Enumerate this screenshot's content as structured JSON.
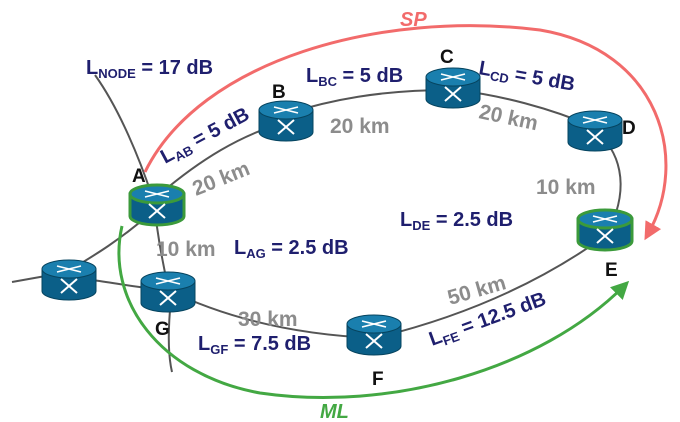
{
  "colors": {
    "loss_text": "#1f1f6e",
    "distance_text": "#8c8c8c",
    "sp_path": "#f26b6b",
    "ml_path": "#43a843",
    "router_body": "#0b5f88",
    "router_top": "#1a7fae",
    "router_rim": "#3b9a3b",
    "link": "#555555"
  },
  "icons": {
    "router": "router-cylinder-icon"
  },
  "nodes": {
    "A": "A",
    "B": "B",
    "C": "C",
    "D": "D",
    "E": "E",
    "F": "F",
    "G": "G"
  },
  "node_loss": {
    "main": "L",
    "sub": "NODE",
    "value": " = 17 dB"
  },
  "links": {
    "AB": {
      "sub": "AB",
      "value": " = 5 dB",
      "distance": "20 km"
    },
    "BC": {
      "sub": "BC",
      "value": " = 5 dB",
      "distance": "20 km"
    },
    "CD": {
      "sub": "CD",
      "value": " = 5 dB",
      "distance": "20 km"
    },
    "DE": {
      "sub": "DE",
      "value": " = 2.5 dB",
      "distance": "10 km"
    },
    "AG": {
      "sub": "AG",
      "value": " = 2.5 dB",
      "distance": "10 km"
    },
    "GF": {
      "sub": "GF",
      "value": " = 7.5 dB",
      "distance": "30 km"
    },
    "FE": {
      "sub": "FE",
      "value": " = 12.5 dB",
      "distance": "50 km"
    }
  },
  "paths": {
    "sp": "SP",
    "ml": "ML"
  }
}
